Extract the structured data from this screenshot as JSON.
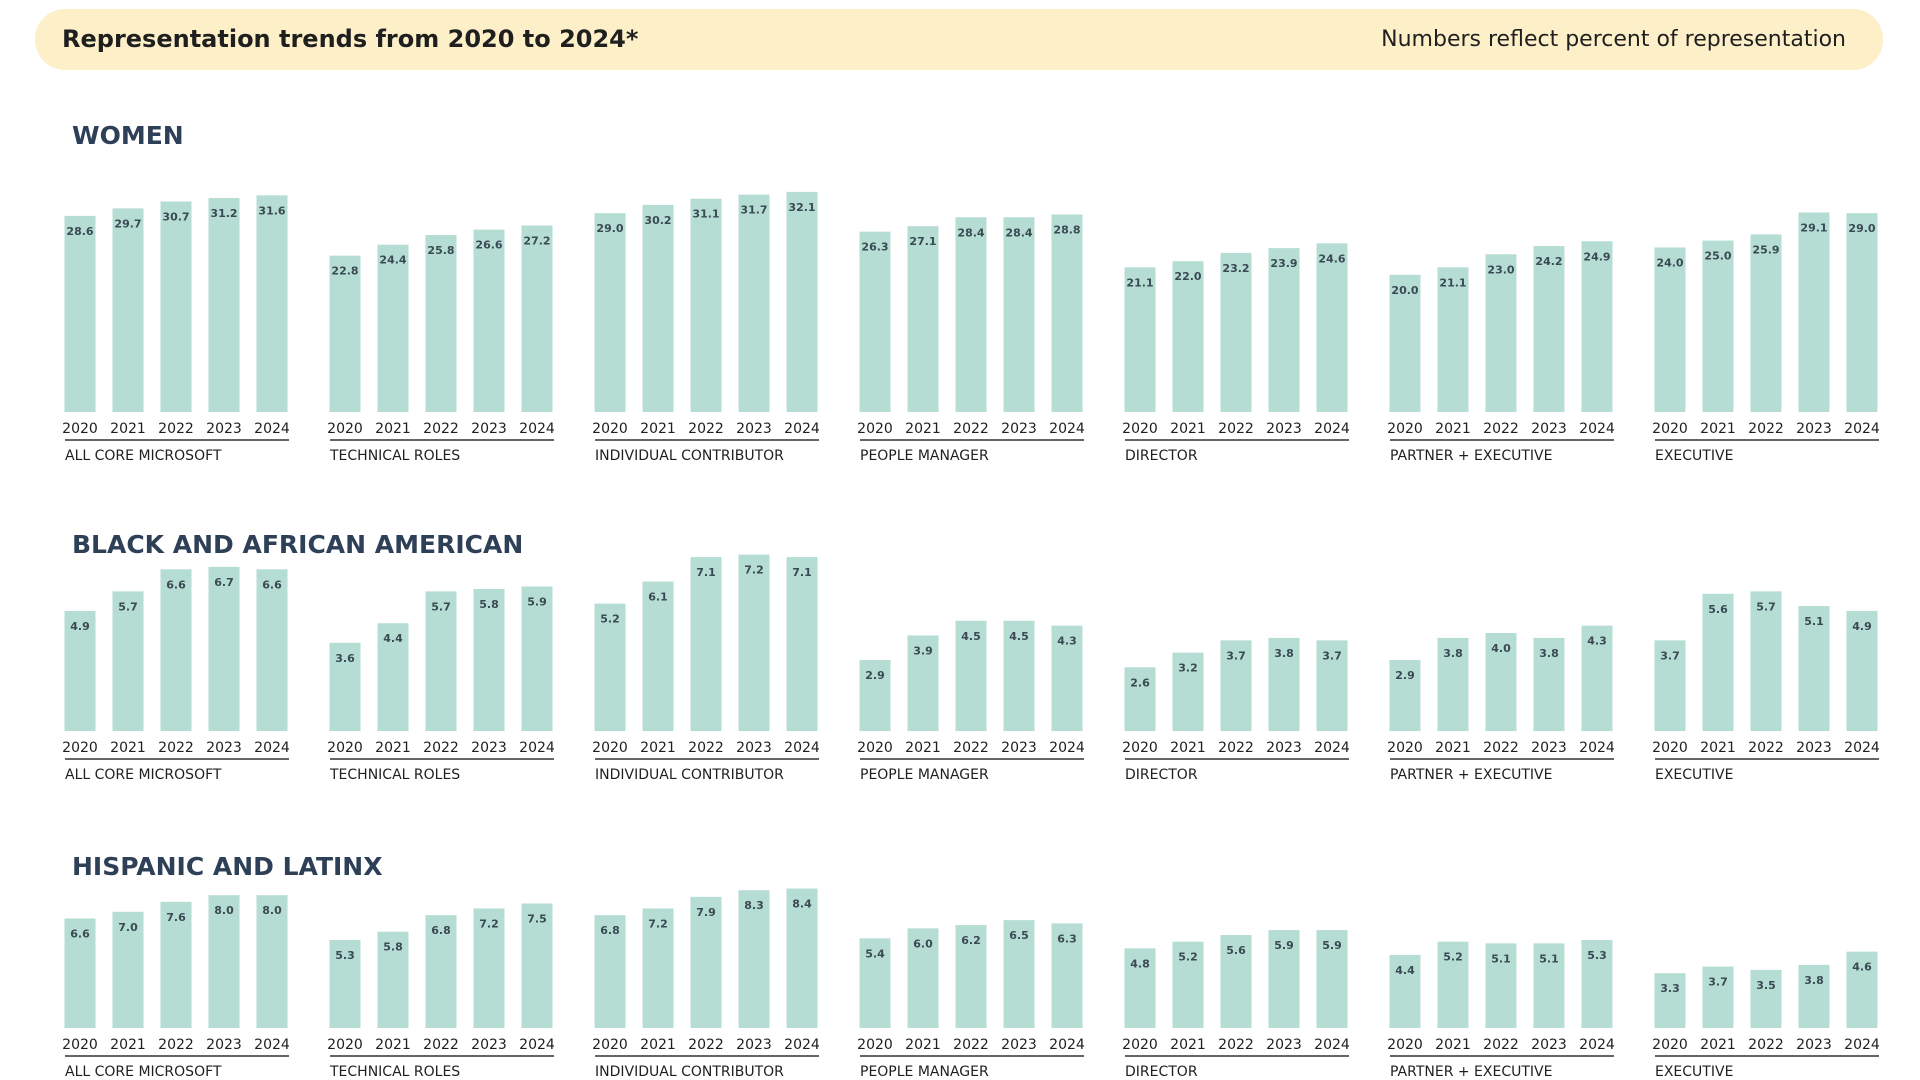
{
  "header": {
    "title": "Representation trends from 2020 to 2024*",
    "note": "Numbers reflect percent of representation"
  },
  "sections": [
    {
      "title": "WOMEN",
      "chart_data": [
        {
          "type": "bar",
          "label": "ALL CORE MICROSOFT",
          "categories": [
            "2020",
            "2021",
            "2022",
            "2023",
            "2024"
          ],
          "values": [
            28.6,
            29.7,
            30.7,
            31.2,
            31.6
          ],
          "value_labels": [
            "28.6",
            "29.7",
            "30.7",
            "31.2",
            "31.6"
          ],
          "ylim": [
            0,
            35
          ],
          "color": "#b6ddd3"
        },
        {
          "type": "bar",
          "label": "TECHNICAL ROLES",
          "categories": [
            "2020",
            "2021",
            "2022",
            "2023",
            "2024"
          ],
          "values": [
            22.8,
            24.4,
            25.8,
            26.6,
            27.2
          ],
          "value_labels": [
            "22.8",
            "24.4",
            "25.8",
            "26.6",
            "27.2"
          ],
          "ylim": [
            0,
            35
          ],
          "color": "#b6ddd3"
        },
        {
          "type": "bar",
          "label": "INDIVIDUAL CONTRIBUTOR",
          "categories": [
            "2020",
            "2021",
            "2022",
            "2023",
            "2024"
          ],
          "values": [
            29.0,
            30.2,
            31.1,
            31.7,
            32.1
          ],
          "value_labels": [
            "29.0",
            "30.2",
            "31.1",
            "31.7",
            "32.1"
          ],
          "ylim": [
            0,
            35
          ],
          "color": "#b6ddd3"
        },
        {
          "type": "bar",
          "label": "PEOPLE MANAGER",
          "categories": [
            "2020",
            "2021",
            "2022",
            "2023",
            "2024"
          ],
          "values": [
            26.3,
            27.1,
            28.4,
            28.4,
            28.8
          ],
          "value_labels": [
            "26.3",
            "27.1",
            "28.4",
            "28.4",
            "28.8"
          ],
          "ylim": [
            0,
            35
          ],
          "color": "#b6ddd3"
        },
        {
          "type": "bar",
          "label": "DIRECTOR",
          "categories": [
            "2020",
            "2021",
            "2022",
            "2023",
            "2024"
          ],
          "values": [
            21.1,
            22.0,
            23.2,
            23.9,
            24.6
          ],
          "value_labels": [
            "21.1",
            "22.0",
            "23.2",
            "23.9",
            "24.6"
          ],
          "ylim": [
            0,
            35
          ],
          "color": "#b6ddd3"
        },
        {
          "type": "bar",
          "label": "PARTNER + EXECUTIVE",
          "categories": [
            "2020",
            "2021",
            "2022",
            "2023",
            "2024"
          ],
          "values": [
            20.0,
            21.1,
            23.0,
            24.2,
            24.9
          ],
          "value_labels": [
            "20.0",
            "21.1",
            "23.0",
            "24.2",
            "24.9"
          ],
          "ylim": [
            0,
            35
          ],
          "color": "#b6ddd3"
        },
        {
          "type": "bar",
          "label": "EXECUTIVE",
          "categories": [
            "2020",
            "2021",
            "2022",
            "2023",
            "2024"
          ],
          "values": [
            24.0,
            25.0,
            25.9,
            29.1,
            29.0
          ],
          "value_labels": [
            "24.0",
            "25.0",
            "25.9",
            "29.1",
            "29.0"
          ],
          "ylim": [
            0,
            35
          ],
          "color": "#b6ddd3"
        }
      ]
    },
    {
      "title": "BLACK AND AFRICAN AMERICAN",
      "chart_data": [
        {
          "type": "bar",
          "label": "ALL CORE MICROSOFT",
          "categories": [
            "2020",
            "2021",
            "2022",
            "2023",
            "2024"
          ],
          "values": [
            4.9,
            5.7,
            6.6,
            6.7,
            6.6
          ],
          "value_labels": [
            "4.9",
            "5.7",
            "6.6",
            "6.7",
            "6.6"
          ],
          "ylim": [
            0,
            8
          ],
          "color": "#b6ddd3"
        },
        {
          "type": "bar",
          "label": "TECHNICAL ROLES",
          "categories": [
            "2020",
            "2021",
            "2022",
            "2023",
            "2024"
          ],
          "values": [
            3.6,
            4.4,
            5.7,
            5.8,
            5.9
          ],
          "value_labels": [
            "3.6",
            "4.4",
            "5.7",
            "5.8",
            "5.9"
          ],
          "ylim": [
            0,
            8
          ],
          "color": "#b6ddd3"
        },
        {
          "type": "bar",
          "label": "INDIVIDUAL CONTRIBUTOR",
          "categories": [
            "2020",
            "2021",
            "2022",
            "2023",
            "2024"
          ],
          "values": [
            5.2,
            6.1,
            7.1,
            7.2,
            7.1
          ],
          "value_labels": [
            "5.2",
            "6.1",
            "7.1",
            "7.2",
            "7.1"
          ],
          "ylim": [
            0,
            8
          ],
          "color": "#b6ddd3"
        },
        {
          "type": "bar",
          "label": "PEOPLE MANAGER",
          "categories": [
            "2020",
            "2021",
            "2022",
            "2023",
            "2024"
          ],
          "values": [
            2.9,
            3.9,
            4.5,
            4.5,
            4.3
          ],
          "value_labels": [
            "2.9",
            "3.9",
            "4.5",
            "4.5",
            "4.3"
          ],
          "ylim": [
            0,
            8
          ],
          "color": "#b6ddd3"
        },
        {
          "type": "bar",
          "label": "DIRECTOR",
          "categories": [
            "2020",
            "2021",
            "2022",
            "2023",
            "2024"
          ],
          "values": [
            2.6,
            3.2,
            3.7,
            3.8,
            3.7
          ],
          "value_labels": [
            "2.6",
            "3.2",
            "3.7",
            "3.8",
            "3.7"
          ],
          "ylim": [
            0,
            8
          ],
          "color": "#b6ddd3"
        },
        {
          "type": "bar",
          "label": "PARTNER + EXECUTIVE",
          "categories": [
            "2020",
            "2021",
            "2022",
            "2023",
            "2024"
          ],
          "values": [
            2.9,
            3.8,
            4.0,
            3.8,
            4.3
          ],
          "value_labels": [
            "2.9",
            "3.8",
            "4.0",
            "3.8",
            "4.3"
          ],
          "ylim": [
            0,
            8
          ],
          "color": "#b6ddd3"
        },
        {
          "type": "bar",
          "label": "EXECUTIVE",
          "categories": [
            "2020",
            "2021",
            "2022",
            "2023",
            "2024"
          ],
          "values": [
            3.7,
            5.6,
            5.7,
            5.1,
            4.9
          ],
          "value_labels": [
            "3.7",
            "5.6",
            "5.7",
            "5.1",
            "4.9"
          ],
          "ylim": [
            0,
            8
          ],
          "color": "#b6ddd3"
        }
      ]
    },
    {
      "title": "HISPANIC AND LATINX",
      "chart_data": [
        {
          "type": "bar",
          "label": "ALL CORE MICROSOFT",
          "categories": [
            "2020",
            "2021",
            "2022",
            "2023",
            "2024"
          ],
          "values": [
            6.6,
            7.0,
            7.6,
            8.0,
            8.0
          ],
          "value_labels": [
            "6.6",
            "7.0",
            "7.6",
            "8.0",
            "8.0"
          ],
          "ylim": [
            0,
            10
          ],
          "color": "#b6ddd3"
        },
        {
          "type": "bar",
          "label": "TECHNICAL ROLES",
          "categories": [
            "2020",
            "2021",
            "2022",
            "2023",
            "2024"
          ],
          "values": [
            5.3,
            5.8,
            6.8,
            7.2,
            7.5
          ],
          "value_labels": [
            "5.3",
            "5.8",
            "6.8",
            "7.2",
            "7.5"
          ],
          "ylim": [
            0,
            10
          ],
          "color": "#b6ddd3"
        },
        {
          "type": "bar",
          "label": "INDIVIDUAL CONTRIBUTOR",
          "categories": [
            "2020",
            "2021",
            "2022",
            "2023",
            "2024"
          ],
          "values": [
            6.8,
            7.2,
            7.9,
            8.3,
            8.4
          ],
          "value_labels": [
            "6.8",
            "7.2",
            "7.9",
            "8.3",
            "8.4"
          ],
          "ylim": [
            0,
            10
          ],
          "color": "#b6ddd3"
        },
        {
          "type": "bar",
          "label": "PEOPLE MANAGER",
          "categories": [
            "2020",
            "2021",
            "2022",
            "2023",
            "2024"
          ],
          "values": [
            5.4,
            6.0,
            6.2,
            6.5,
            6.3
          ],
          "value_labels": [
            "5.4",
            "6.0",
            "6.2",
            "6.5",
            "6.3"
          ],
          "ylim": [
            0,
            10
          ],
          "color": "#b6ddd3"
        },
        {
          "type": "bar",
          "label": "DIRECTOR",
          "categories": [
            "2020",
            "2021",
            "2022",
            "2023",
            "2024"
          ],
          "values": [
            4.8,
            5.2,
            5.6,
            5.9,
            5.9
          ],
          "value_labels": [
            "4.8",
            "5.2",
            "5.6",
            "5.9",
            "5.9"
          ],
          "ylim": [
            0,
            10
          ],
          "color": "#b6ddd3"
        },
        {
          "type": "bar",
          "label": "PARTNER + EXECUTIVE",
          "categories": [
            "2020",
            "2021",
            "2022",
            "2023",
            "2024"
          ],
          "values": [
            4.4,
            5.2,
            5.1,
            5.1,
            5.3
          ],
          "value_labels": [
            "4.4",
            "5.2",
            "5.1",
            "5.1",
            "5.3"
          ],
          "ylim": [
            0,
            10
          ],
          "color": "#b6ddd3"
        },
        {
          "type": "bar",
          "label": "EXECUTIVE",
          "categories": [
            "2020",
            "2021",
            "2022",
            "2023",
            "2024"
          ],
          "values": [
            3.3,
            3.7,
            3.5,
            3.8,
            4.6
          ],
          "value_labels": [
            "3.3",
            "3.7",
            "3.5",
            "3.8",
            "4.6"
          ],
          "ylim": [
            0,
            10
          ],
          "color": "#b6ddd3"
        }
      ]
    }
  ]
}
